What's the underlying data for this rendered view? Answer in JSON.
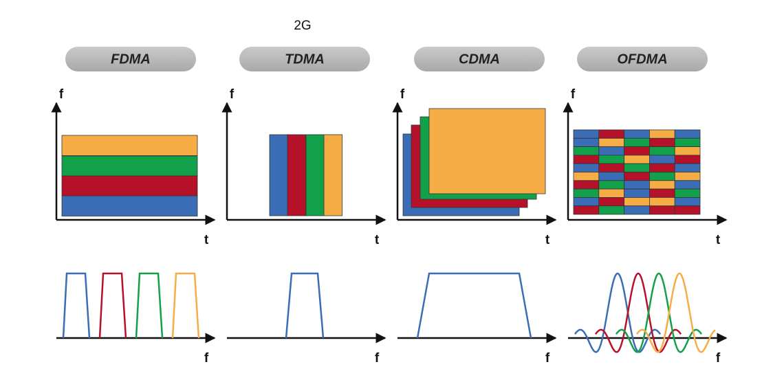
{
  "header": {
    "title": "2G"
  },
  "panels": [
    {
      "name": "FDMA",
      "time_plot": {
        "y_label": "f",
        "x_label": "t"
      },
      "spectrum": {
        "x_label": "f"
      }
    },
    {
      "name": "TDMA",
      "time_plot": {
        "y_label": "f",
        "x_label": "t"
      },
      "spectrum": {
        "x_label": "f"
      }
    },
    {
      "name": "CDMA",
      "time_plot": {
        "y_label": "f",
        "x_label": "t"
      },
      "spectrum": {
        "x_label": "f"
      }
    },
    {
      "name": "OFDMA",
      "time_plot": {
        "y_label": "f",
        "x_label": "t"
      },
      "spectrum": {
        "x_label": "f"
      }
    }
  ]
}
